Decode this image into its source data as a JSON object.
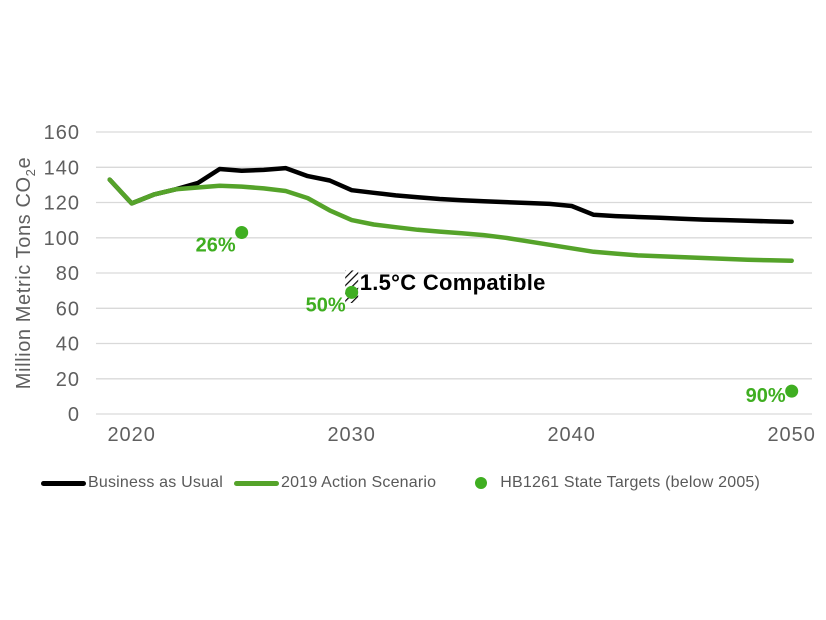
{
  "chart_data": {
    "type": "line",
    "title": "",
    "ylabel": "Million Metric Tons CO2e",
    "ylabel_parts": {
      "pre": "Million Metric Tons CO",
      "sub": "2",
      "post": "e"
    },
    "ylim": [
      0,
      160
    ],
    "y_tick_step": 20,
    "xlim": [
      2019,
      2050
    ],
    "x_ticks": [
      2020,
      2030,
      2040,
      2050
    ],
    "grid": "horizontal",
    "legend_position": "bottom",
    "x": [
      2019,
      2020,
      2021,
      2022,
      2023,
      2024,
      2025,
      2026,
      2027,
      2028,
      2029,
      2030,
      2031,
      2032,
      2033,
      2034,
      2035,
      2036,
      2037,
      2038,
      2039,
      2040,
      2041,
      2042,
      2043,
      2044,
      2045,
      2046,
      2047,
      2048,
      2049,
      2050
    ],
    "series": [
      {
        "name": "Business as Usual",
        "color": "#000000",
        "values": [
          133,
          119.5,
          124.5,
          127.5,
          131,
          139,
          138,
          138.5,
          139.5,
          135,
          132.5,
          127,
          125.5,
          124,
          123,
          122,
          121.3,
          120.7,
          120.2,
          119.7,
          119.2,
          118,
          113,
          112.3,
          111.8,
          111.3,
          110.8,
          110.3,
          110,
          109.7,
          109.3,
          109
        ]
      },
      {
        "name": "2019 Action Scenario",
        "color": "#55a32a",
        "values": [
          133,
          119.5,
          124.5,
          127.5,
          128.5,
          129.5,
          129,
          128,
          126.5,
          122.5,
          115.5,
          110,
          107.5,
          106,
          104.5,
          103.5,
          102.5,
          101.5,
          100,
          98,
          96,
          94,
          92,
          91,
          90,
          89.5,
          89,
          88.5,
          88,
          87.5,
          87.2,
          87
        ]
      }
    ],
    "targets": {
      "name": "HB1261 State Targets (below 2005)",
      "color": "#3fae21",
      "points": [
        {
          "x": 2025,
          "y": 103,
          "label": "26%",
          "label_placement": "below"
        },
        {
          "x": 2030,
          "y": 69,
          "label": "50%",
          "label_placement": "below"
        },
        {
          "x": 2050,
          "y": 13,
          "label": "90%",
          "label_placement": "side"
        }
      ]
    },
    "annotation": {
      "text": "1.5°C Compatible",
      "x": 2030,
      "y_range": [
        63,
        81.5
      ]
    }
  },
  "legend": {
    "items": [
      {
        "label": "Business as Usual",
        "swatch": "line",
        "color": "#000000"
      },
      {
        "label": "2019 Action Scenario",
        "swatch": "line",
        "color": "#55a32a"
      },
      {
        "label": "HB1261 State Targets (below 2005)",
        "swatch": "dot",
        "color": "#3fae21"
      }
    ]
  },
  "colors": {
    "grid": "#d9d9d9",
    "axis_text": "#5f5f5f",
    "annotation_text": "#000000",
    "background": "#ffffff"
  }
}
